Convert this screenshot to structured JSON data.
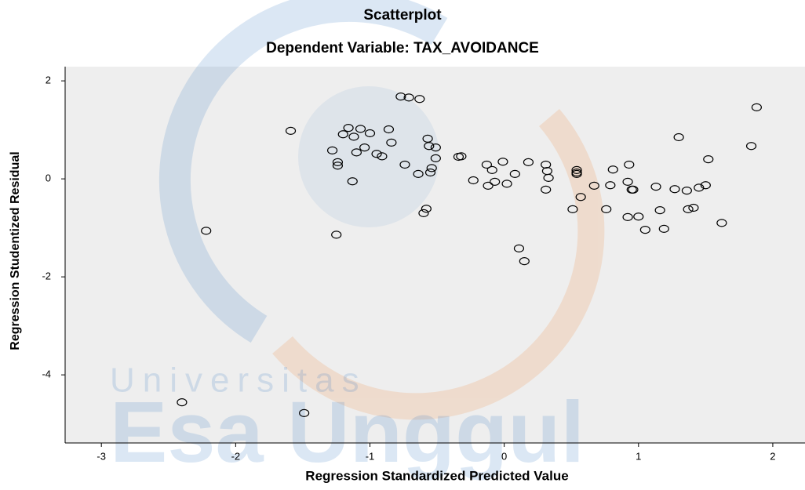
{
  "chart_data": {
    "type": "scatter",
    "title": "Scatterplot",
    "subtitle": "Dependent Variable: TAX_AVOIDANCE",
    "x_label": "Regression Standardized Predicted Value",
    "y_label": "Regression Studentized Residual",
    "watermark": {
      "line1": "Universitas",
      "line2": "Esa Unggul"
    },
    "x": [
      -1.59,
      -2.22,
      -2.4,
      -1.49,
      -1.28,
      -1.24,
      -1.24,
      -1.25,
      -1.2,
      -1.16,
      -1.12,
      -1.13,
      -1.1,
      -1.07,
      -1.04,
      -1.0,
      -0.95,
      -0.91,
      -0.86,
      -0.84,
      -0.77,
      -0.71,
      -0.63,
      -0.74,
      -0.64,
      -0.6,
      -0.56,
      -0.51,
      -0.51,
      -0.58,
      -0.57,
      -0.54,
      -0.55,
      -0.34,
      -0.32,
      -0.23,
      -0.13,
      -0.09,
      -0.12,
      -0.07,
      -0.01,
      0.02,
      0.08,
      0.18,
      0.11,
      0.15,
      0.31,
      0.32,
      0.33,
      0.31,
      0.51,
      0.54,
      0.54,
      0.54,
      0.57,
      0.67,
      0.76,
      0.79,
      0.81,
      0.92,
      0.93,
      0.95,
      0.96,
      0.92,
      1.0,
      1.05,
      1.13,
      1.16,
      1.19,
      1.27,
      1.3,
      1.36,
      1.37,
      1.41,
      1.45,
      1.5,
      1.52,
      1.62,
      1.84,
      1.88
    ],
    "values": [
      0.98,
      -1.06,
      -4.56,
      -4.78,
      0.58,
      0.34,
      0.27,
      -1.14,
      0.91,
      1.04,
      0.86,
      -0.05,
      0.54,
      1.02,
      0.64,
      0.93,
      0.51,
      0.46,
      1.01,
      0.74,
      1.68,
      1.66,
      1.63,
      0.29,
      0.1,
      -0.7,
      0.67,
      0.64,
      0.42,
      -0.61,
      0.82,
      0.22,
      0.13,
      0.45,
      0.46,
      -0.03,
      0.29,
      0.18,
      -0.14,
      -0.06,
      0.35,
      -0.1,
      0.1,
      0.34,
      -1.42,
      -1.68,
      0.29,
      0.16,
      0.02,
      -0.22,
      -0.62,
      0.18,
      0.13,
      0.1,
      -0.37,
      -0.14,
      -0.62,
      -0.13,
      0.19,
      -0.06,
      0.29,
      -0.22,
      -0.22,
      -0.78,
      -0.77,
      -1.04,
      -0.16,
      -0.64,
      -1.02,
      -0.21,
      0.85,
      -0.24,
      -0.62,
      -0.59,
      -0.18,
      -0.13,
      0.4,
      -0.9,
      0.67,
      1.46
    ],
    "xlim": [
      -3.27,
      2.24
    ],
    "xticks": [
      -3,
      -2,
      -1,
      0,
      1,
      2
    ],
    "ylim": [
      -5.39,
      2.29
    ],
    "yticks": [
      -4,
      -2,
      0,
      2
    ],
    "marker_color": "#000000",
    "plot_background": "#eeeeee"
  }
}
